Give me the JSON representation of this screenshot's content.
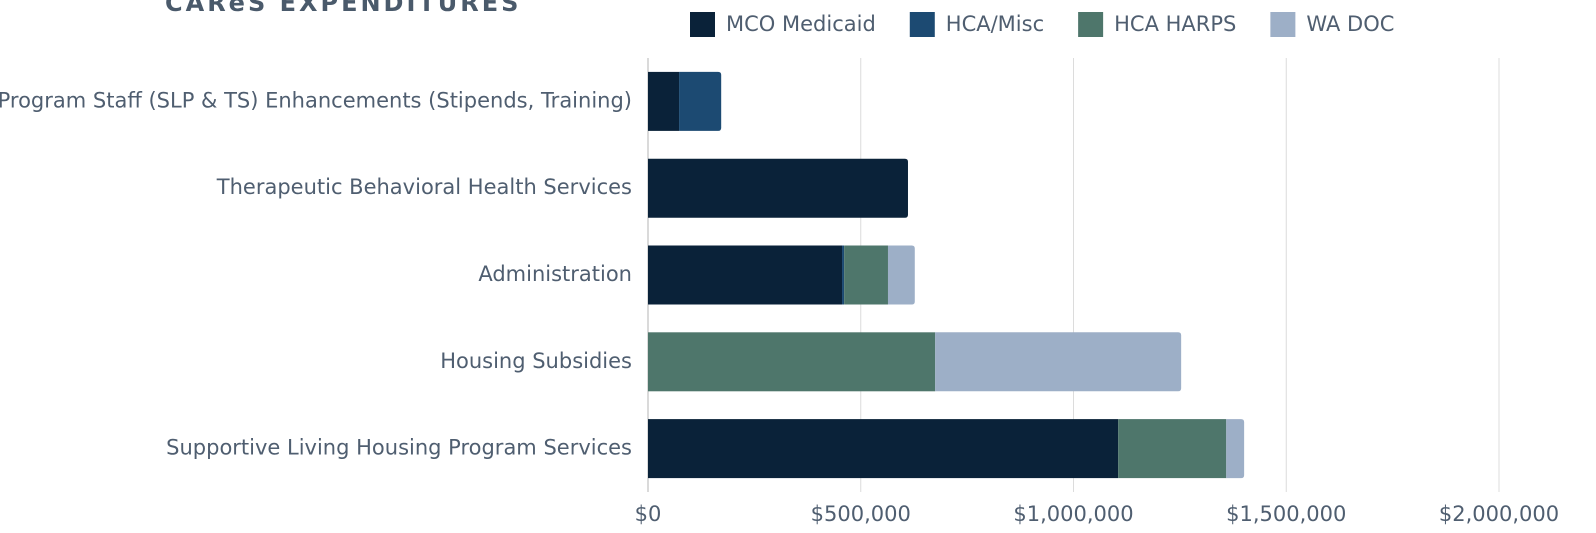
{
  "chart_data": {
    "type": "stacked_barh",
    "title": "CAReS EXPENDITURES",
    "categories": [
      "Program Staff (SLP & TS) Enhancements (Stipends, Training)",
      "Therapeutic Behavioral Health Services",
      "Administration",
      "Housing Subsidies",
      "Supportive Living Housing Program Services"
    ],
    "series": [
      {
        "name": "MCO Medicaid",
        "color": "#0a2239",
        "values": [
          73000,
          611000,
          456000,
          null,
          1105000
        ]
      },
      {
        "name": "HCA/Misc",
        "color": "#1c4a72",
        "values": [
          99000,
          null,
          5000,
          null,
          null
        ]
      },
      {
        "name": "HCA HARPS",
        "color": "#4e766b",
        "values": [
          null,
          null,
          103000,
          675000,
          254000
        ]
      },
      {
        "name": "WA DOC",
        "color": "#9dafc7",
        "values": [
          null,
          null,
          63000,
          578000,
          42000
        ]
      }
    ],
    "xlim": [
      0,
      2000000
    ],
    "xticks": [
      {
        "value": 0,
        "label": "$0"
      },
      {
        "value": 500000,
        "label": "$500,000"
      },
      {
        "value": 1000000,
        "label": "$1,000,000"
      },
      {
        "value": 1500000,
        "label": "$1,500,000"
      },
      {
        "value": 2000000,
        "label": "$2,000,000"
      }
    ],
    "grid": true,
    "legend": "top"
  }
}
